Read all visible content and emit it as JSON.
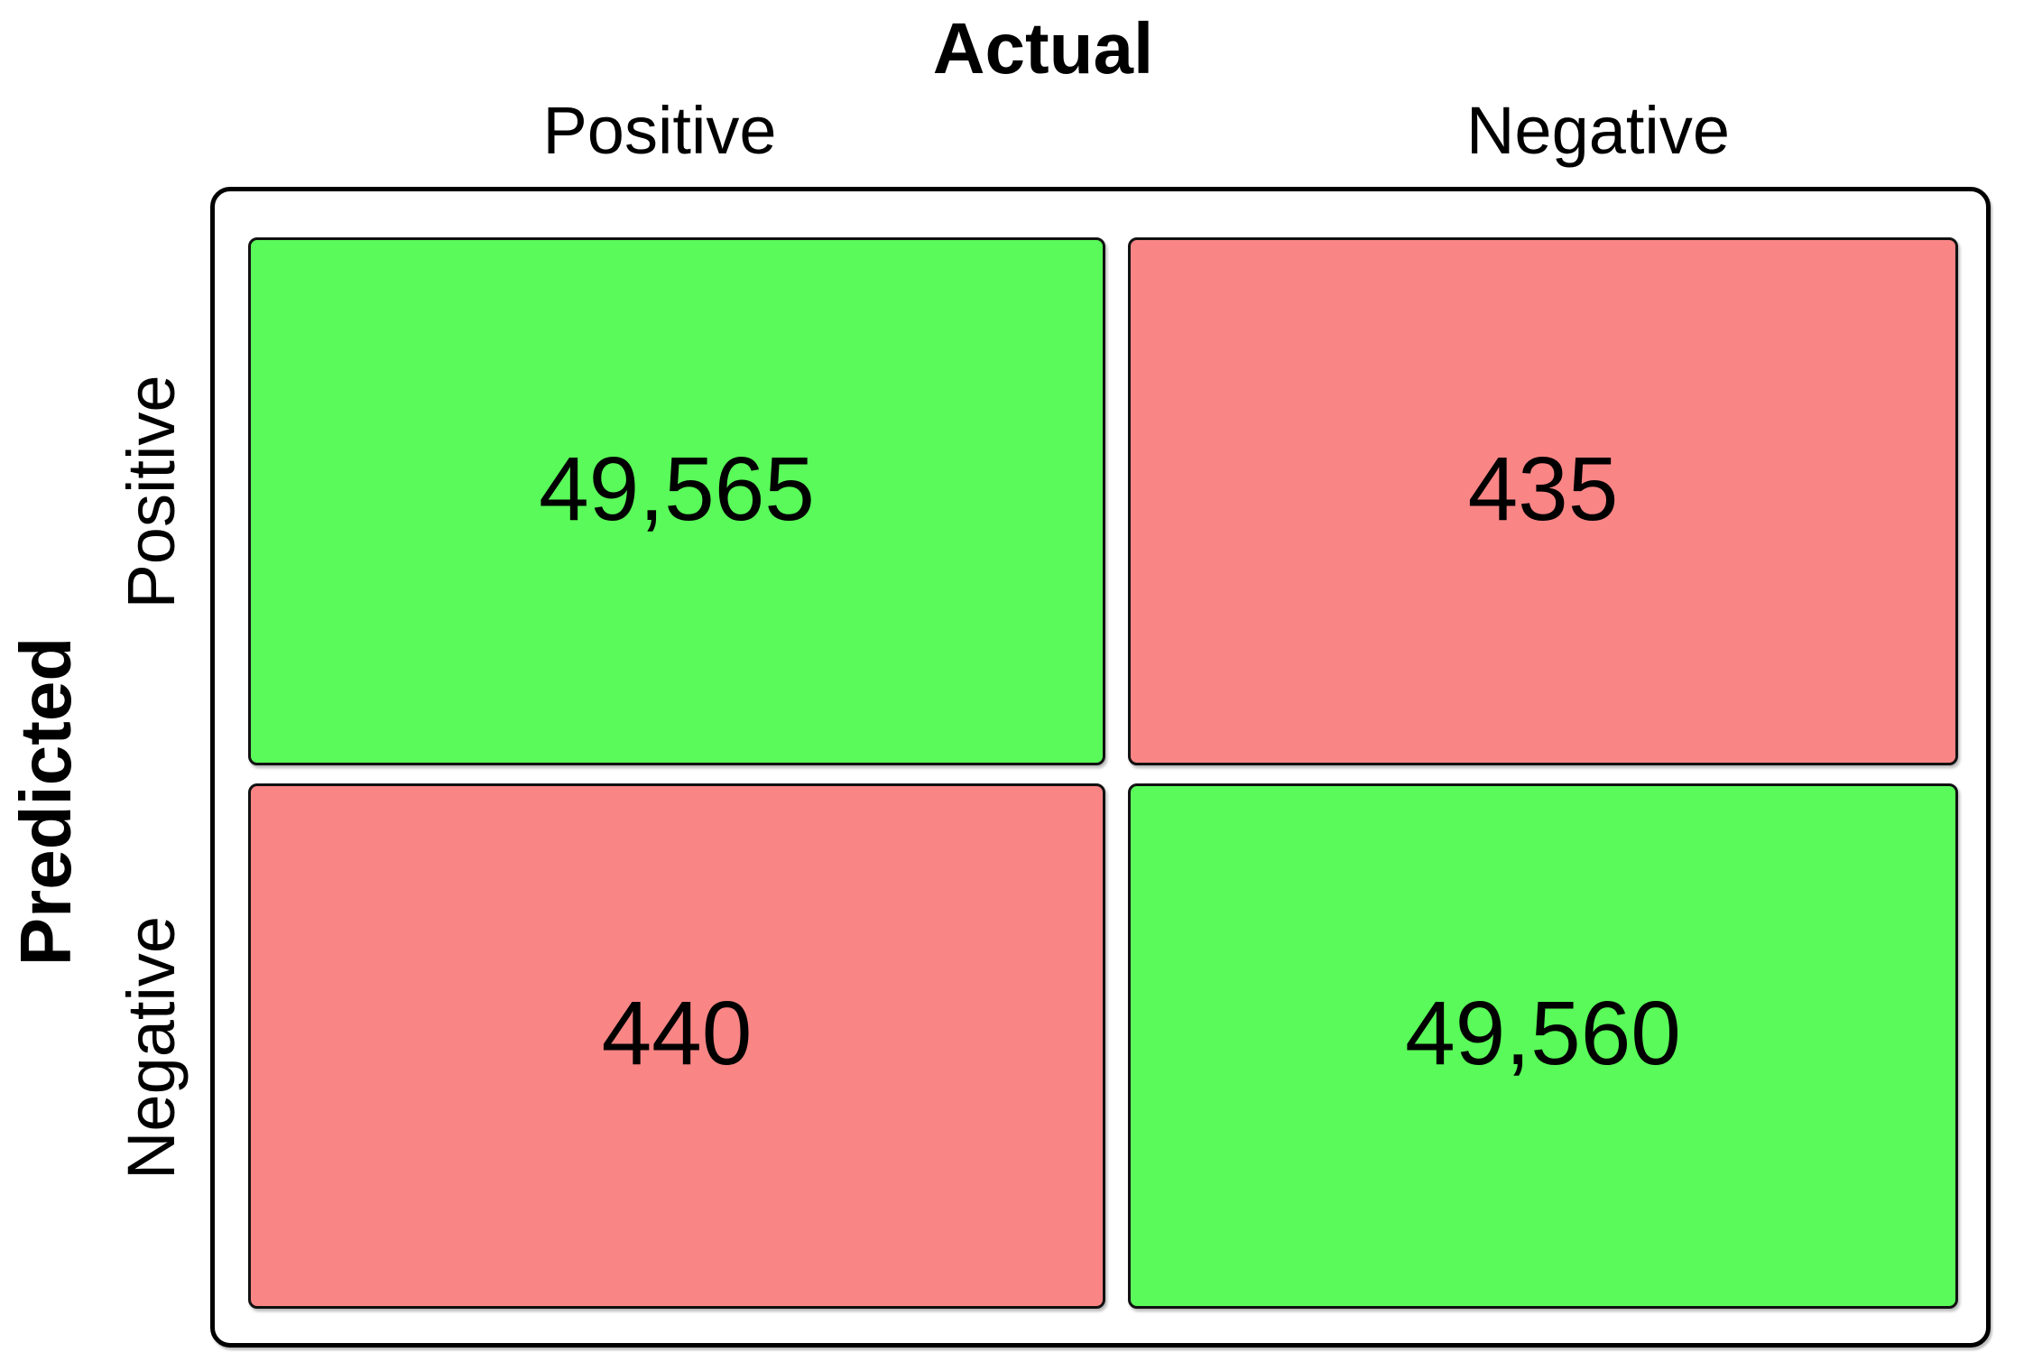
{
  "figure": {
    "top_axis_title": "Actual",
    "left_axis_title": "Predicted",
    "column_labels": [
      "Positive",
      "Negative"
    ],
    "row_labels": [
      "Positive",
      "Negative"
    ]
  },
  "cells": [
    {
      "row": "Positive",
      "col": "Positive",
      "value": "49,565",
      "kind": "true-positive",
      "color": "#59fa59"
    },
    {
      "row": "Positive",
      "col": "Negative",
      "value": "435",
      "kind": "false-positive",
      "color": "#fa8585"
    },
    {
      "row": "Negative",
      "col": "Positive",
      "value": "440",
      "kind": "false-negative",
      "color": "#fa8585"
    },
    {
      "row": "Negative",
      "col": "Negative",
      "value": "49,560",
      "kind": "true-negative",
      "color": "#59fa59"
    }
  ],
  "colors": {
    "correct": "#59fa59",
    "incorrect": "#fa8585",
    "frame_border": "#000000",
    "text": "#000000"
  },
  "chart_data": {
    "type": "heatmap",
    "title": "",
    "x_axis_label": "Actual",
    "y_axis_label": "Predicted",
    "x_categories": [
      "Positive",
      "Negative"
    ],
    "y_categories": [
      "Positive",
      "Negative"
    ],
    "matrix": [
      [
        49565,
        435
      ],
      [
        440,
        49560
      ]
    ],
    "cell_color_roles": [
      [
        "correct",
        "incorrect"
      ],
      [
        "incorrect",
        "correct"
      ]
    ],
    "legend_position": "none",
    "grid": false
  }
}
